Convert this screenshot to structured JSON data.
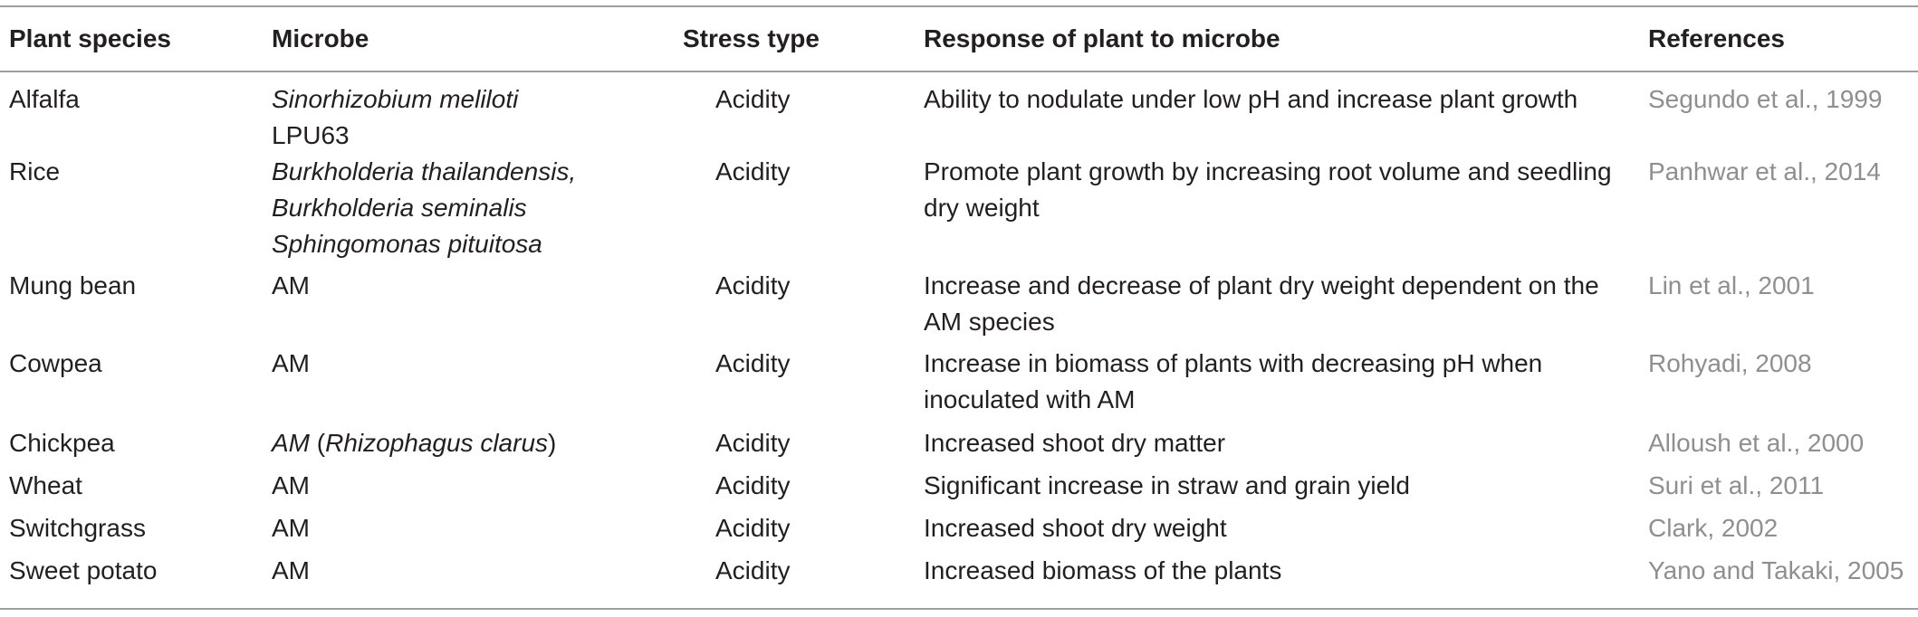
{
  "table": {
    "headers": {
      "plant": "Plant species",
      "microbe": "Microbe",
      "stress": "Stress type",
      "response": "Response of plant to microbe",
      "references": "References"
    },
    "rows": [
      {
        "plant": "Alfalfa",
        "microbe_italic": "Sinorhizobium meliloti",
        "microbe_strain": "LPU63",
        "stress": "Acidity",
        "response": "Ability to nodulate under low pH and increase plant growth",
        "reference": "Segundo et al., 1999"
      },
      {
        "plant": "Rice",
        "microbe_line1": "Burkholderia thailandensis,",
        "microbe_line2": "Burkholderia seminalis",
        "microbe_line3": "Sphingomonas pituitosa",
        "stress": "Acidity",
        "response": "Promote plant growth by increasing root volume and seedling dry weight",
        "reference": "Panhwar et al., 2014"
      },
      {
        "plant": "Mung bean",
        "microbe": "AM",
        "stress": "Acidity",
        "response": "Increase and decrease of plant dry weight dependent on the AM species",
        "reference": "Lin et al., 2001"
      },
      {
        "plant": "Cowpea",
        "microbe": "AM",
        "stress": "Acidity",
        "response": "Increase in biomass of plants with decreasing pH when inoculated with AM",
        "reference": "Rohyadi, 2008"
      },
      {
        "plant": "Chickpea",
        "microbe_italic": "AM",
        "microbe_open": " (",
        "microbe_italic2": "Rhizophagus clarus",
        "microbe_close": ")",
        "stress": "Acidity",
        "response": "Increased shoot dry matter",
        "reference": "Alloush et al., 2000"
      },
      {
        "plant": "Wheat",
        "microbe": "AM",
        "stress": "Acidity",
        "response": "Significant increase in straw and grain yield",
        "reference": "Suri et al., 2011"
      },
      {
        "plant": "Switchgrass",
        "microbe": "AM",
        "stress": "Acidity",
        "response": "Increased shoot dry weight",
        "reference": "Clark, 2002"
      },
      {
        "plant": "Sweet potato",
        "microbe": "AM",
        "stress": "Acidity",
        "response": "Increased biomass of the plants",
        "reference": "Yano and Takaki, 2005"
      }
    ]
  }
}
